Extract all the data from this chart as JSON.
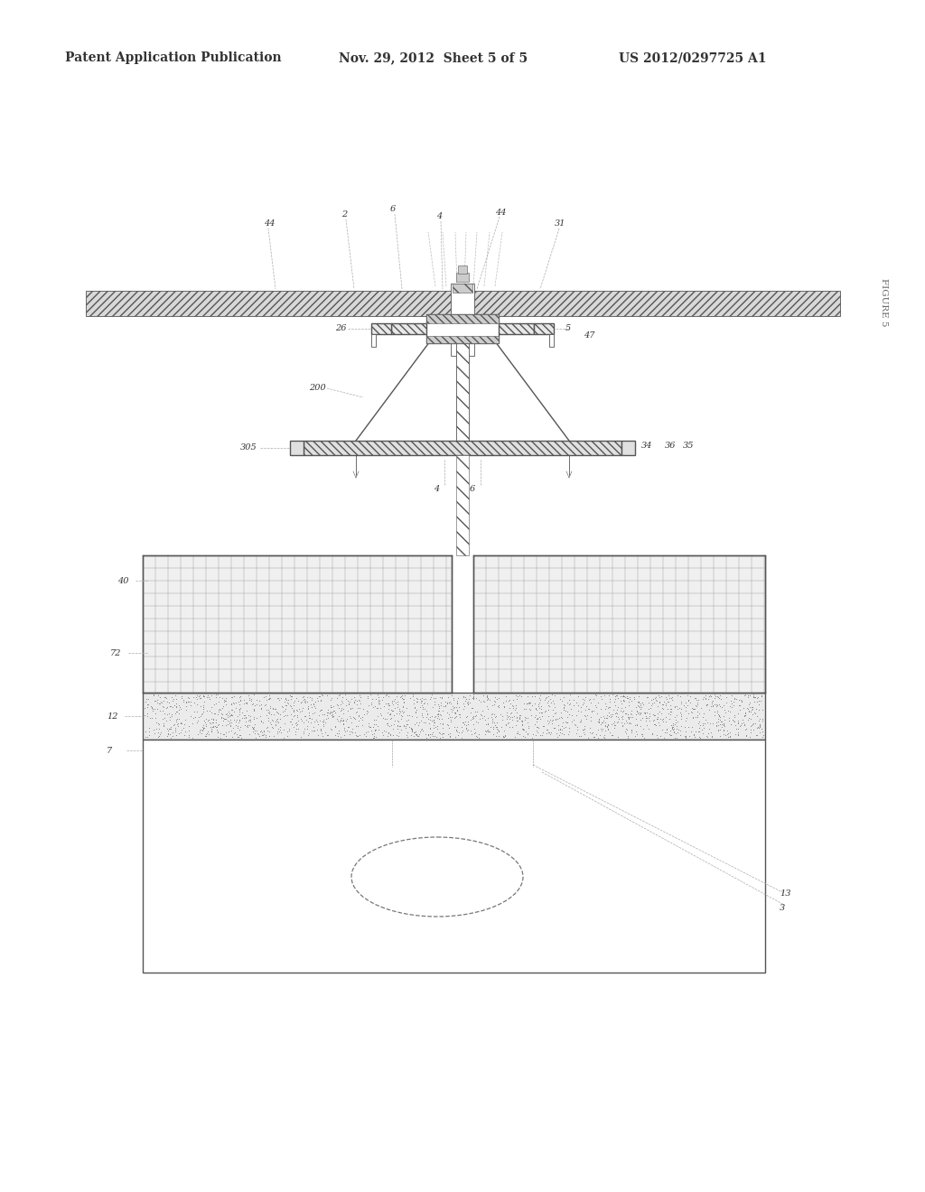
{
  "header_left": "Patent Application Publication",
  "header_mid": "Nov. 29, 2012  Sheet 5 of 5",
  "header_right": "US 2012/0297725 A1",
  "figure_label": "FIGURE 5",
  "bg_color": "#ffffff",
  "line_color": "#555555",
  "dim_color": "#888888",
  "text_color": "#333333",
  "hatch_fc": "#dddddd",
  "grid_fc": "#f5f5f5"
}
